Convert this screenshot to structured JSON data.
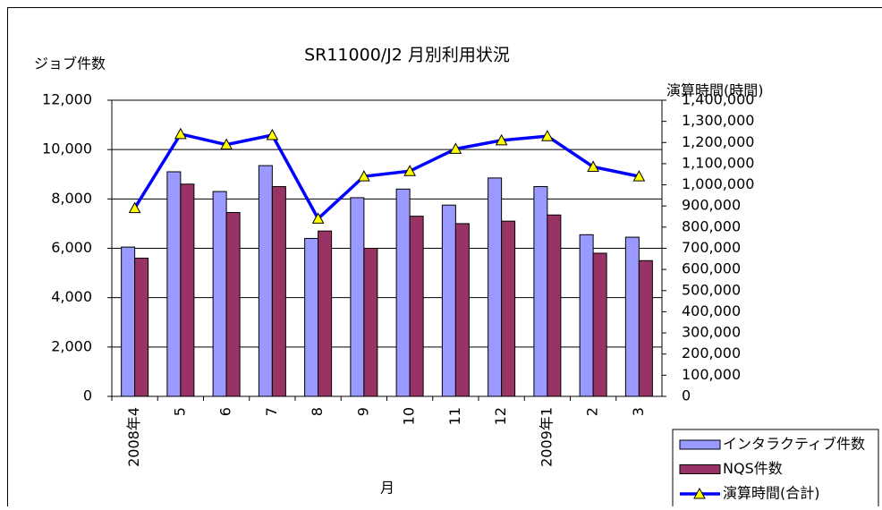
{
  "chart_data": {
    "type": "bar",
    "title": "SR11000/J2 月別利用状況",
    "xlabel": "月",
    "ylabel": "ジョブ件数",
    "y2label": "演算時間(時間)",
    "categories": [
      "2008年4",
      "5",
      "6",
      "7",
      "8",
      "9",
      "10",
      "11",
      "12",
      "2009年1",
      "2",
      "3"
    ],
    "series": [
      {
        "name": "インタラクティブ件数",
        "color": "#9999ff",
        "values": [
          6050,
          9100,
          8300,
          9350,
          6400,
          8050,
          8400,
          7750,
          8850,
          8500,
          6550,
          6450
        ]
      },
      {
        "name": "NQS件数",
        "color": "#993366",
        "values": [
          5600,
          8600,
          7450,
          8500,
          6700,
          6000,
          7300,
          7000,
          7100,
          7350,
          5800,
          5500
        ]
      },
      {
        "name": "演算時間(合計)",
        "type": "line",
        "axis": "y2",
        "color": "#0000ff",
        "marker_color": "#ffff00",
        "values": [
          890000,
          1240000,
          1190000,
          1235000,
          840000,
          1040000,
          1065000,
          1170000,
          1210000,
          1230000,
          1085000,
          1040000
        ]
      }
    ],
    "ylim": [
      0,
      12000
    ],
    "yticks": [
      0,
      {
        "value": 2000,
        "label": "2,000"
      },
      {
        "value": 4000,
        "label": "4,000"
      },
      {
        "value": 6000,
        "label": "6,000"
      },
      {
        "value": 8000,
        "label": "8,000"
      },
      {
        "value": 10000,
        "label": "10,000"
      },
      {
        "value": 12000,
        "label": "12,000"
      }
    ],
    "y2lim": [
      0,
      1400000
    ],
    "y2ticks": [
      0,
      {
        "value": 100000,
        "label": "100,000"
      },
      {
        "value": 200000,
        "label": "200,000"
      },
      {
        "value": 300000,
        "label": "300,000"
      },
      {
        "value": 400000,
        "label": "400,000"
      },
      {
        "value": 500000,
        "label": "500,000"
      },
      {
        "value": 600000,
        "label": "600,000"
      },
      {
        "value": 700000,
        "label": "700,000"
      },
      {
        "value": 800000,
        "label": "800,000"
      },
      {
        "value": 900000,
        "label": "900,000"
      },
      {
        "value": 1000000,
        "label": "1,000,000"
      },
      {
        "value": 1100000,
        "label": "1,100,000"
      },
      {
        "value": 1200000,
        "label": "1,200,000"
      },
      {
        "value": 1300000,
        "label": "1,300,000"
      },
      {
        "value": 1400000,
        "label": "1,400,000"
      }
    ],
    "grid": true,
    "legend": "lower right"
  }
}
